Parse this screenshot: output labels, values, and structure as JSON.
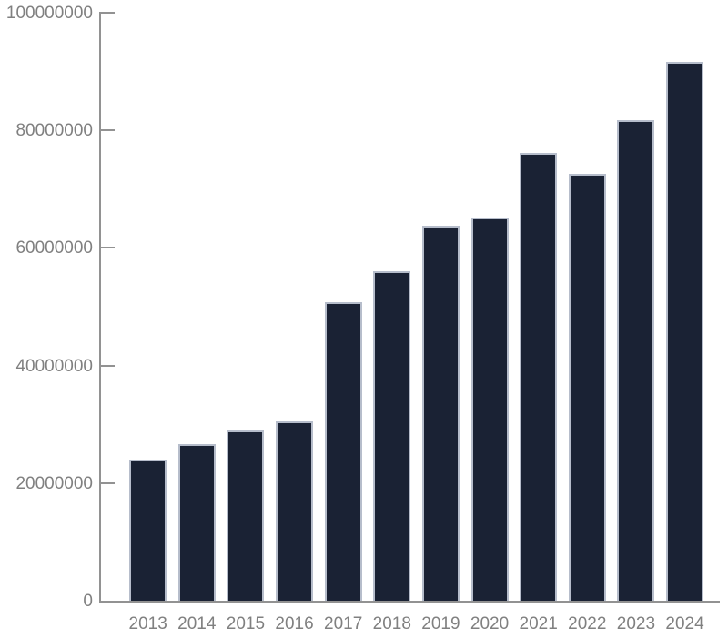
{
  "chart_data": {
    "type": "bar",
    "title": "",
    "xlabel": "",
    "ylabel": "",
    "categories": [
      "2013",
      "2014",
      "2015",
      "2016",
      "2017",
      "2018",
      "2019",
      "2020",
      "2021",
      "2022",
      "2023",
      "2024"
    ],
    "values": [
      24000000,
      26600000,
      28900000,
      30500000,
      50700000,
      56000000,
      63800000,
      65100000,
      76100000,
      72600000,
      81800000,
      91700000
    ],
    "ylim": [
      0,
      100000000
    ],
    "ytick_interval": 20000000,
    "ytick_labels": [
      "0",
      "20000000",
      "40000000",
      "60000000",
      "80000000",
      "100000000"
    ],
    "grid": false,
    "legend": false,
    "bar_color": "#1a2234",
    "bar_border_color": "#b6bdcb",
    "axis_color": "#929292",
    "label_color": "#808080"
  }
}
